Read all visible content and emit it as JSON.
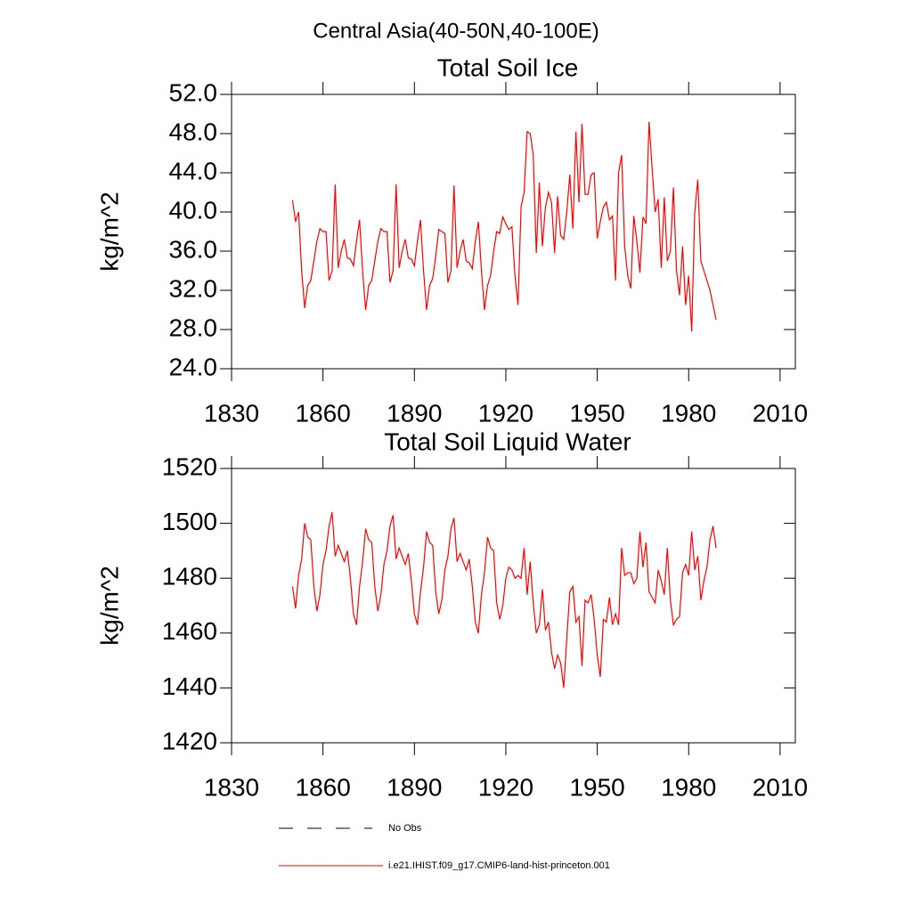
{
  "title": "Central Asia(40-50N,40-100E)",
  "legend": [
    {
      "name": "No Obs",
      "color": "#000000",
      "dash": true
    }
  ],
  "chart_data": [
    {
      "type": "line",
      "title": "Total Soil Ice",
      "ylabel": "kg/m^2",
      "xlim": [
        1830,
        2015
      ],
      "xticks": [
        1830,
        1860,
        1890,
        1920,
        1950,
        1980,
        2010
      ],
      "ylim": [
        24,
        52
      ],
      "yticks": [
        {
          "value": 24,
          "label": "24.0"
        },
        {
          "value": 28,
          "label": "28.0"
        },
        {
          "value": 32,
          "label": "32.0"
        },
        {
          "value": 36,
          "label": "36.0"
        },
        {
          "value": 40,
          "label": "40.0"
        },
        {
          "value": 44,
          "label": "44.0"
        },
        {
          "value": 48,
          "label": "48.0"
        },
        {
          "value": 52,
          "label": "52.0"
        }
      ],
      "x": [
        1850,
        1851,
        1852,
        1853,
        1854,
        1855,
        1856,
        1857,
        1858,
        1859,
        1860,
        1861,
        1862,
        1863,
        1864,
        1865,
        1866,
        1867,
        1868,
        1869,
        1870,
        1871,
        1872,
        1873,
        1874,
        1875,
        1876,
        1877,
        1878,
        1879,
        1880,
        1881,
        1882,
        1883,
        1884,
        1885,
        1886,
        1887,
        1888,
        1889,
        1890,
        1891,
        1892,
        1893,
        1894,
        1895,
        1896,
        1897,
        1898,
        1899,
        1900,
        1901,
        1902,
        1903,
        1904,
        1905,
        1906,
        1907,
        1908,
        1909,
        1910,
        1911,
        1912,
        1913,
        1914,
        1915,
        1916,
        1917,
        1918,
        1919,
        1920,
        1921,
        1922,
        1923,
        1924,
        1925,
        1926,
        1927,
        1928,
        1929,
        1930,
        1931,
        1932,
        1933,
        1934,
        1935,
        1936,
        1937,
        1938,
        1939,
        1940,
        1941,
        1942,
        1943,
        1944,
        1945,
        1946,
        1947,
        1948,
        1949,
        1950,
        1951,
        1952,
        1953,
        1954,
        1955,
        1956,
        1957,
        1958,
        1959,
        1960,
        1961,
        1962,
        1963,
        1964,
        1965,
        1966,
        1967,
        1968,
        1969,
        1970,
        1971,
        1972,
        1973,
        1974,
        1975,
        1976,
        1977,
        1978,
        1979,
        1980,
        1981,
        1982,
        1983,
        1984,
        1985,
        1986,
        1987,
        1988,
        1989
      ],
      "series": [
        {
          "name": "i.e21.IHIST.f09_g17.CMIP6-land-hist-princeton.001",
          "color": "#ff0000",
          "values": [
            41.2,
            39,
            40,
            34,
            30.2,
            32.5,
            33,
            35,
            37,
            38.3,
            38,
            38,
            33,
            34,
            42.8,
            34.3,
            36,
            37.2,
            35.3,
            35.2,
            34.5,
            37,
            39.2,
            34,
            30,
            32.5,
            33,
            35,
            37,
            38.3,
            38,
            38,
            32.8,
            34,
            42.8,
            34.3,
            36,
            37.2,
            35.3,
            35.2,
            34.5,
            37,
            39.2,
            34,
            30,
            32.5,
            33.2,
            35.5,
            38.2,
            38,
            37.8,
            32.8,
            34,
            42.7,
            34.3,
            36,
            37.2,
            35,
            34.8,
            34.2,
            37,
            39,
            34,
            30,
            32.5,
            33.5,
            36,
            38,
            37.8,
            39.5,
            38.8,
            38.2,
            38.5,
            33.5,
            30.5,
            40.5,
            42,
            48.2,
            48,
            45.8,
            35.8,
            43,
            36.5,
            40.5,
            42,
            41,
            35.8,
            41.6,
            37.6,
            37.2,
            40,
            43.8,
            38.3,
            48.2,
            41,
            49,
            41.8,
            41.8,
            43.8,
            44,
            37.3,
            39,
            40.5,
            41,
            39.2,
            39.6,
            33,
            44,
            45.8,
            36.5,
            33.5,
            32.2,
            39.6,
            37,
            33.8,
            39.5,
            38.8,
            49.2,
            44.5,
            40,
            41.3,
            34.3,
            41.5,
            35,
            36,
            42.5,
            34,
            31.5,
            36.5,
            30.5,
            33.5,
            27.8,
            40,
            43.3,
            35,
            34,
            33,
            32,
            30.5,
            29
          ]
        }
      ]
    },
    {
      "type": "line",
      "title": "Total Soil Liquid Water",
      "ylabel": "kg/m^2",
      "xlim": [
        1830,
        2015
      ],
      "xticks": [
        1830,
        1860,
        1890,
        1920,
        1950,
        1980,
        2010
      ],
      "ylim": [
        1420,
        1520
      ],
      "yticks": [
        1420,
        1440,
        1460,
        1480,
        1500,
        1520
      ],
      "x": [
        1850,
        1851,
        1852,
        1853,
        1854,
        1855,
        1856,
        1857,
        1858,
        1859,
        1860,
        1861,
        1862,
        1863,
        1864,
        1865,
        1866,
        1867,
        1868,
        1869,
        1870,
        1871,
        1872,
        1873,
        1874,
        1875,
        1876,
        1877,
        1878,
        1879,
        1880,
        1881,
        1882,
        1883,
        1884,
        1885,
        1886,
        1887,
        1888,
        1889,
        1890,
        1891,
        1892,
        1893,
        1894,
        1895,
        1896,
        1897,
        1898,
        1899,
        1900,
        1901,
        1902,
        1903,
        1904,
        1905,
        1906,
        1907,
        1908,
        1909,
        1910,
        1911,
        1912,
        1913,
        1914,
        1915,
        1916,
        1917,
        1918,
        1919,
        1920,
        1921,
        1922,
        1923,
        1924,
        1925,
        1926,
        1927,
        1928,
        1929,
        1930,
        1931,
        1932,
        1933,
        1934,
        1935,
        1936,
        1937,
        1938,
        1939,
        1940,
        1941,
        1942,
        1943,
        1944,
        1945,
        1946,
        1947,
        1948,
        1949,
        1950,
        1951,
        1952,
        1953,
        1954,
        1955,
        1956,
        1957,
        1958,
        1959,
        1960,
        1961,
        1962,
        1963,
        1964,
        1965,
        1966,
        1967,
        1968,
        1969,
        1970,
        1971,
        1972,
        1973,
        1974,
        1975,
        1976,
        1977,
        1978,
        1979,
        1980,
        1981,
        1982,
        1983,
        1984,
        1985,
        1986,
        1987,
        1988,
        1989
      ],
      "series": [
        {
          "color": "#ff0000",
          "values": [
            1477,
            1469,
            1481,
            1487,
            1500,
            1495,
            1494,
            1477,
            1468,
            1474,
            1485,
            1490,
            1499,
            1504,
            1488,
            1492,
            1489,
            1486,
            1490,
            1480,
            1467,
            1463,
            1477,
            1486,
            1498,
            1494,
            1493,
            1477,
            1468,
            1474,
            1485,
            1490,
            1499,
            1503,
            1487,
            1491,
            1488,
            1485,
            1489,
            1479,
            1467,
            1463,
            1475,
            1484,
            1497,
            1493,
            1492,
            1475,
            1467,
            1472,
            1483,
            1488,
            1498,
            1502,
            1486,
            1489,
            1486,
            1483,
            1487,
            1477,
            1464,
            1460,
            1474,
            1482,
            1495,
            1491,
            1490,
            1471,
            1465,
            1470,
            1480,
            1484,
            1483,
            1480,
            1481,
            1480,
            1491,
            1474,
            1486,
            1471,
            1460,
            1463,
            1476,
            1461,
            1464,
            1453,
            1447,
            1452,
            1449,
            1440,
            1458,
            1475,
            1477,
            1464,
            1466,
            1448,
            1472,
            1471,
            1474,
            1465,
            1452,
            1444,
            1465,
            1464,
            1473,
            1463,
            1467,
            1463,
            1491,
            1481,
            1482,
            1482,
            1478,
            1480,
            1497,
            1484,
            1493,
            1475,
            1473,
            1471,
            1483,
            1479,
            1474,
            1491,
            1472,
            1463,
            1465,
            1466,
            1482,
            1485,
            1481,
            1497,
            1483,
            1488,
            1472,
            1479,
            1484,
            1494,
            1499,
            1491
          ]
        }
      ]
    }
  ]
}
